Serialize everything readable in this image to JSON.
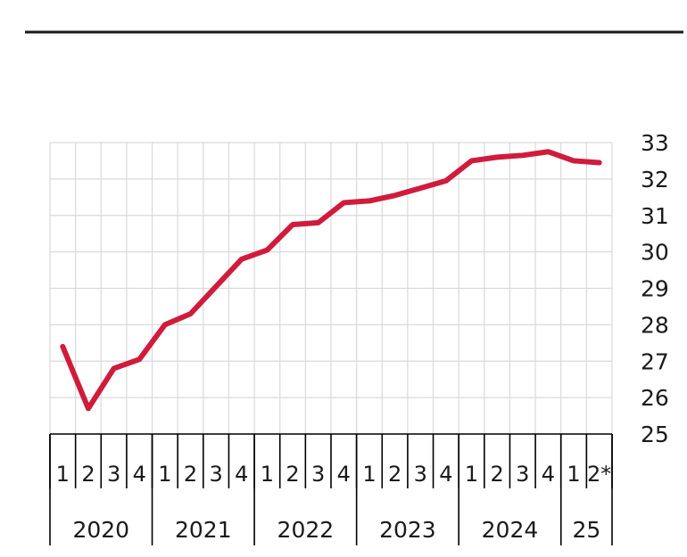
{
  "chart_data": {
    "type": "line",
    "x": [
      "2020-Q1",
      "2020-Q2",
      "2020-Q3",
      "2020-Q4",
      "2021-Q1",
      "2021-Q2",
      "2021-Q3",
      "2021-Q4",
      "2022-Q1",
      "2022-Q2",
      "2022-Q3",
      "2022-Q4",
      "2023-Q1",
      "2023-Q2",
      "2023-Q3",
      "2023-Q4",
      "2024-Q1",
      "2024-Q2",
      "2024-Q3",
      "2024-Q4",
      "2025-Q1",
      "2025-Q2"
    ],
    "quarter_labels": [
      "1",
      "2",
      "3",
      "4",
      "1",
      "2",
      "3",
      "4",
      "1",
      "2",
      "3",
      "4",
      "1",
      "2",
      "3",
      "4",
      "1",
      "2",
      "3",
      "4",
      "1",
      "2*"
    ],
    "years": [
      {
        "label": "2020",
        "quarters": 4
      },
      {
        "label": "2021",
        "quarters": 4
      },
      {
        "label": "2022",
        "quarters": 4
      },
      {
        "label": "2023",
        "quarters": 4
      },
      {
        "label": "2024",
        "quarters": 4
      },
      {
        "label": "25",
        "quarters": 2
      }
    ],
    "series": [
      {
        "color": "#d01c3c",
        "values": [
          27.4,
          25.7,
          26.8,
          27.05,
          28.0,
          28.3,
          29.05,
          29.8,
          30.05,
          30.75,
          30.8,
          31.35,
          31.4,
          31.55,
          31.75,
          31.95,
          32.5,
          32.6,
          32.65,
          32.75,
          32.5,
          32.45
        ]
      }
    ],
    "ylim": [
      25,
      33
    ],
    "yticks": [
      "25",
      "26",
      "27",
      "28",
      "29",
      "30",
      "31",
      "32",
      "33"
    ],
    "grid": true,
    "y_axis_side": "right"
  }
}
